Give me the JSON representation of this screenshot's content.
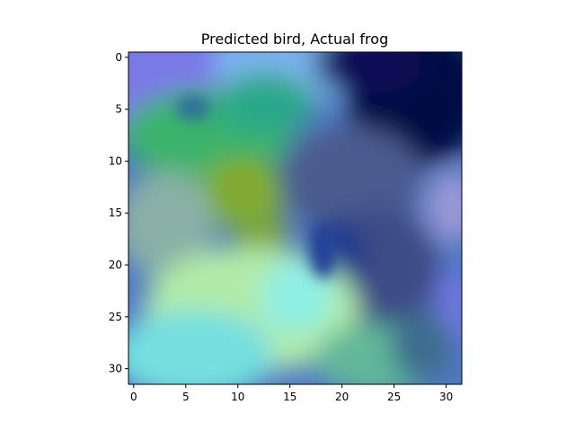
{
  "figure": {
    "title": "Predicted bird, Actual frog",
    "image": {
      "description_width": 32,
      "description_height": 32
    },
    "x_axis": {
      "range": [
        -0.5,
        31.5
      ],
      "ticks": [
        0,
        5,
        10,
        15,
        20,
        25,
        30
      ]
    },
    "y_axis": {
      "range": [
        -0.5,
        31.5
      ],
      "ticks": [
        0,
        5,
        10,
        15,
        20,
        25,
        30
      ],
      "inverted": true
    },
    "colors": {
      "axes_frame": "#000000",
      "dark_navy": "#060845",
      "periwinkle": "#7a79e6",
      "green": "#3bb36c",
      "olive_green": "#7cae3a",
      "slate_blue": "#3d4c86",
      "light_green": "#b2eba8",
      "cyan": "#74dfdf",
      "gray_teal": "#8ab0a6"
    }
  }
}
